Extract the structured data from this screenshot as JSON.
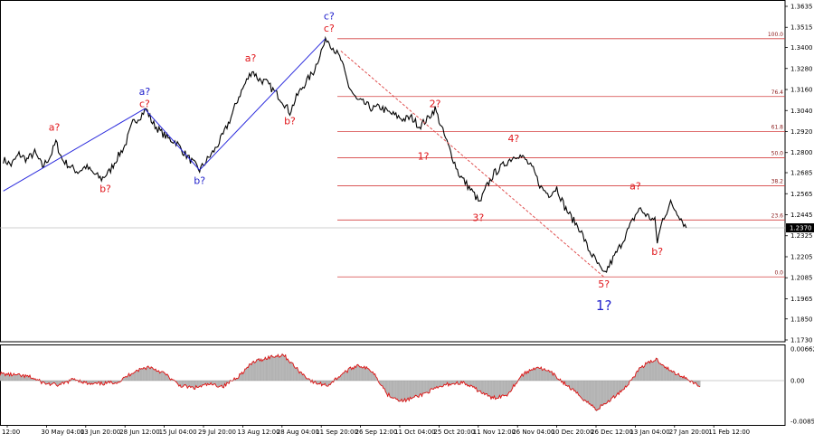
{
  "chart_data": [
    {
      "type": "line",
      "title": "",
      "price_ticks": [
        "1.3635",
        "1.3515",
        "1.3400",
        "1.3280",
        "1.3160",
        "1.3040",
        "1.2920",
        "1.2800",
        "1.2685",
        "1.2565",
        "1.2445",
        "1.2325",
        "1.2205",
        "1.2085",
        "1.1965",
        "1.1850",
        "1.1730"
      ],
      "current_price": "1.2370",
      "fib_levels": [
        {
          "label": "100.0",
          "value": 1.345
        },
        {
          "label": "76.4",
          "value": 1.312
        },
        {
          "label": "61.8",
          "value": 1.292
        },
        {
          "label": "50.0",
          "value": 1.277
        },
        {
          "label": "38.2",
          "value": 1.261
        },
        {
          "label": "23.6",
          "value": 1.2415
        },
        {
          "label": "0.0",
          "value": 1.209
        }
      ],
      "wave_labels": [
        {
          "text": "a?",
          "color": "red",
          "date_idx": 0.6,
          "price": 1.2925
        },
        {
          "text": "b?",
          "color": "red",
          "date_idx": 1.25,
          "price": 1.2575
        },
        {
          "text": "a?",
          "color": "blue",
          "date_idx": 1.75,
          "price": 1.313
        },
        {
          "text": "c?",
          "color": "red",
          "date_idx": 1.75,
          "price": 1.306
        },
        {
          "text": "b?",
          "color": "blue",
          "date_idx": 2.45,
          "price": 1.262
        },
        {
          "text": "a?",
          "color": "red",
          "date_idx": 3.1,
          "price": 1.332
        },
        {
          "text": "b?",
          "color": "red",
          "date_idx": 3.6,
          "price": 1.296
        },
        {
          "text": "c?",
          "color": "blue",
          "date_idx": 4.1,
          "price": 1.356
        },
        {
          "text": "c?",
          "color": "red",
          "date_idx": 4.1,
          "price": 1.349
        },
        {
          "text": "2?",
          "color": "red",
          "date_idx": 5.45,
          "price": 1.306
        },
        {
          "text": "1?",
          "color": "red",
          "date_idx": 5.3,
          "price": 1.276
        },
        {
          "text": "3?",
          "color": "red",
          "date_idx": 6.0,
          "price": 1.241
        },
        {
          "text": "4?",
          "color": "red",
          "date_idx": 6.45,
          "price": 1.286
        },
        {
          "text": "5?",
          "color": "red",
          "date_idx": 7.6,
          "price": 1.203
        },
        {
          "text": "1?",
          "color": "blue-big",
          "date_idx": 7.6,
          "price": 1.19
        },
        {
          "text": "a?",
          "color": "red",
          "date_idx": 8.0,
          "price": 1.259
        },
        {
          "text": "b?",
          "color": "red",
          "date_idx": 8.28,
          "price": 1.2215
        }
      ],
      "wave_lines": [
        {
          "p1": [
            -0.05,
            1.258
          ],
          "p2": [
            1.75,
            1.305
          ],
          "style": "solid"
        },
        {
          "p1": [
            1.75,
            1.305
          ],
          "p2": [
            2.45,
            1.27
          ],
          "style": "solid"
        },
        {
          "p1": [
            2.45,
            1.27
          ],
          "p2": [
            4.05,
            1.345
          ],
          "style": "solid"
        },
        {
          "p1": [
            4.25,
            1.338
          ],
          "p2": [
            7.6,
            1.209
          ],
          "style": "dashed"
        }
      ],
      "price_series": [
        [
          -0.05,
          1.276
        ],
        [
          0.05,
          1.273
        ],
        [
          0.15,
          1.279
        ],
        [
          0.25,
          1.276
        ],
        [
          0.35,
          1.28
        ],
        [
          0.45,
          1.272
        ],
        [
          0.55,
          1.278
        ],
        [
          0.62,
          1.286
        ],
        [
          0.7,
          1.276
        ],
        [
          0.8,
          1.272
        ],
        [
          0.9,
          1.269
        ],
        [
          1.0,
          1.272
        ],
        [
          1.1,
          1.268
        ],
        [
          1.2,
          1.265
        ],
        [
          1.3,
          1.269
        ],
        [
          1.4,
          1.277
        ],
        [
          1.5,
          1.284
        ],
        [
          1.6,
          1.297
        ],
        [
          1.7,
          1.301
        ],
        [
          1.77,
          1.305
        ],
        [
          1.85,
          1.297
        ],
        [
          1.95,
          1.292
        ],
        [
          2.05,
          1.288
        ],
        [
          2.15,
          1.286
        ],
        [
          2.25,
          1.28
        ],
        [
          2.35,
          1.275
        ],
        [
          2.45,
          1.27
        ],
        [
          2.55,
          1.276
        ],
        [
          2.65,
          1.282
        ],
        [
          2.75,
          1.29
        ],
        [
          2.85,
          1.3
        ],
        [
          2.95,
          1.312
        ],
        [
          3.05,
          1.321
        ],
        [
          3.12,
          1.327
        ],
        [
          3.2,
          1.322
        ],
        [
          3.3,
          1.32
        ],
        [
          3.4,
          1.315
        ],
        [
          3.5,
          1.31
        ],
        [
          3.6,
          1.303
        ],
        [
          3.7,
          1.313
        ],
        [
          3.8,
          1.32
        ],
        [
          3.9,
          1.326
        ],
        [
          4.0,
          1.338
        ],
        [
          4.07,
          1.345
        ],
        [
          4.15,
          1.34
        ],
        [
          4.25,
          1.333
        ],
        [
          4.35,
          1.318
        ],
        [
          4.45,
          1.31
        ],
        [
          4.55,
          1.308
        ],
        [
          4.65,
          1.305
        ],
        [
          4.75,
          1.306
        ],
        [
          4.85,
          1.303
        ],
        [
          4.95,
          1.301
        ],
        [
          5.05,
          1.299
        ],
        [
          5.15,
          1.3
        ],
        [
          5.25,
          1.295
        ],
        [
          5.35,
          1.299
        ],
        [
          5.45,
          1.305
        ],
        [
          5.55,
          1.292
        ],
        [
          5.65,
          1.28
        ],
        [
          5.75,
          1.268
        ],
        [
          5.85,
          1.262
        ],
        [
          5.95,
          1.256
        ],
        [
          6.02,
          1.251
        ],
        [
          6.1,
          1.26
        ],
        [
          6.2,
          1.268
        ],
        [
          6.3,
          1.272
        ],
        [
          6.4,
          1.276
        ],
        [
          6.5,
          1.279
        ],
        [
          6.6,
          1.276
        ],
        [
          6.7,
          1.27
        ],
        [
          6.8,
          1.26
        ],
        [
          6.9,
          1.256
        ],
        [
          7.0,
          1.26
        ],
        [
          7.1,
          1.249
        ],
        [
          7.2,
          1.242
        ],
        [
          7.3,
          1.236
        ],
        [
          7.4,
          1.225
        ],
        [
          7.5,
          1.218
        ],
        [
          7.6,
          1.21
        ],
        [
          7.7,
          1.218
        ],
        [
          7.8,
          1.226
        ],
        [
          7.9,
          1.235
        ],
        [
          8.0,
          1.244
        ],
        [
          8.05,
          1.248
        ],
        [
          8.15,
          1.244
        ],
        [
          8.25,
          1.241
        ],
        [
          8.28,
          1.229
        ],
        [
          8.35,
          1.242
        ],
        [
          8.45,
          1.251
        ],
        [
          8.55,
          1.245
        ],
        [
          8.65,
          1.237
        ]
      ],
      "x_ticks": [
        "12:00",
        "30 May 04:00",
        "13 Jun 20:00",
        "28 Jun 12:00",
        "15 Jul 04:00",
        "29 Jul 20:00",
        "13 Aug 12:00",
        "28 Aug 04:00",
        "11 Sep 20:00",
        "26 Sep 12:00",
        "11 Oct 04:00",
        "25 Oct 20:00",
        "11 Nov 12:00",
        "26 Nov 04:00",
        "10 Dec 20:00",
        "26 Dec 12:00",
        "13 Jan 04:00",
        "27 Jan 20:00",
        "11 Feb 12:00"
      ]
    },
    {
      "type": "area",
      "osc_ticks": [
        "0.00662",
        "0.00",
        "-0.00851"
      ],
      "ylim": [
        -0.00851,
        0.00662
      ],
      "osc_series": [
        [
          0,
          0.0015
        ],
        [
          0.5,
          0.0012
        ],
        [
          1,
          0.0008
        ],
        [
          1.5,
          -0.0006
        ],
        [
          2,
          -0.001
        ],
        [
          2.5,
          0.0004
        ],
        [
          3,
          -0.0008
        ],
        [
          3.5,
          -0.0006
        ],
        [
          4,
          -0.0002
        ],
        [
          4.5,
          0.002
        ],
        [
          5,
          0.003
        ],
        [
          5.5,
          0.0016
        ],
        [
          6,
          -0.001
        ],
        [
          6.5,
          -0.0016
        ],
        [
          7,
          -0.0008
        ],
        [
          7.5,
          -0.0012
        ],
        [
          8,
          0.001
        ],
        [
          8.5,
          0.004
        ],
        [
          9,
          0.005
        ],
        [
          9.5,
          0.0056
        ],
        [
          10,
          0.0022
        ],
        [
          10.5,
          -0.0004
        ],
        [
          11,
          -0.001
        ],
        [
          11.5,
          0.0016
        ],
        [
          12,
          0.0034
        ],
        [
          12.5,
          0.002
        ],
        [
          13,
          -0.003
        ],
        [
          13.5,
          -0.0044
        ],
        [
          14,
          -0.0034
        ],
        [
          14.5,
          -0.002
        ],
        [
          15,
          -0.0008
        ],
        [
          15.5,
          -0.0004
        ],
        [
          16,
          -0.002
        ],
        [
          16.5,
          -0.0038
        ],
        [
          17,
          -0.003
        ],
        [
          17.5,
          0.0012
        ],
        [
          18,
          0.003
        ],
        [
          18.5,
          0.0016
        ],
        [
          19,
          -0.001
        ],
        [
          19.5,
          -0.0036
        ],
        [
          20,
          -0.0062
        ],
        [
          20.5,
          -0.004
        ],
        [
          21,
          -0.0012
        ],
        [
          21.5,
          0.003
        ],
        [
          22,
          0.0046
        ],
        [
          22.5,
          0.002
        ],
        [
          23,
          0.0006
        ],
        [
          23.5,
          -0.0014
        ]
      ]
    }
  ]
}
